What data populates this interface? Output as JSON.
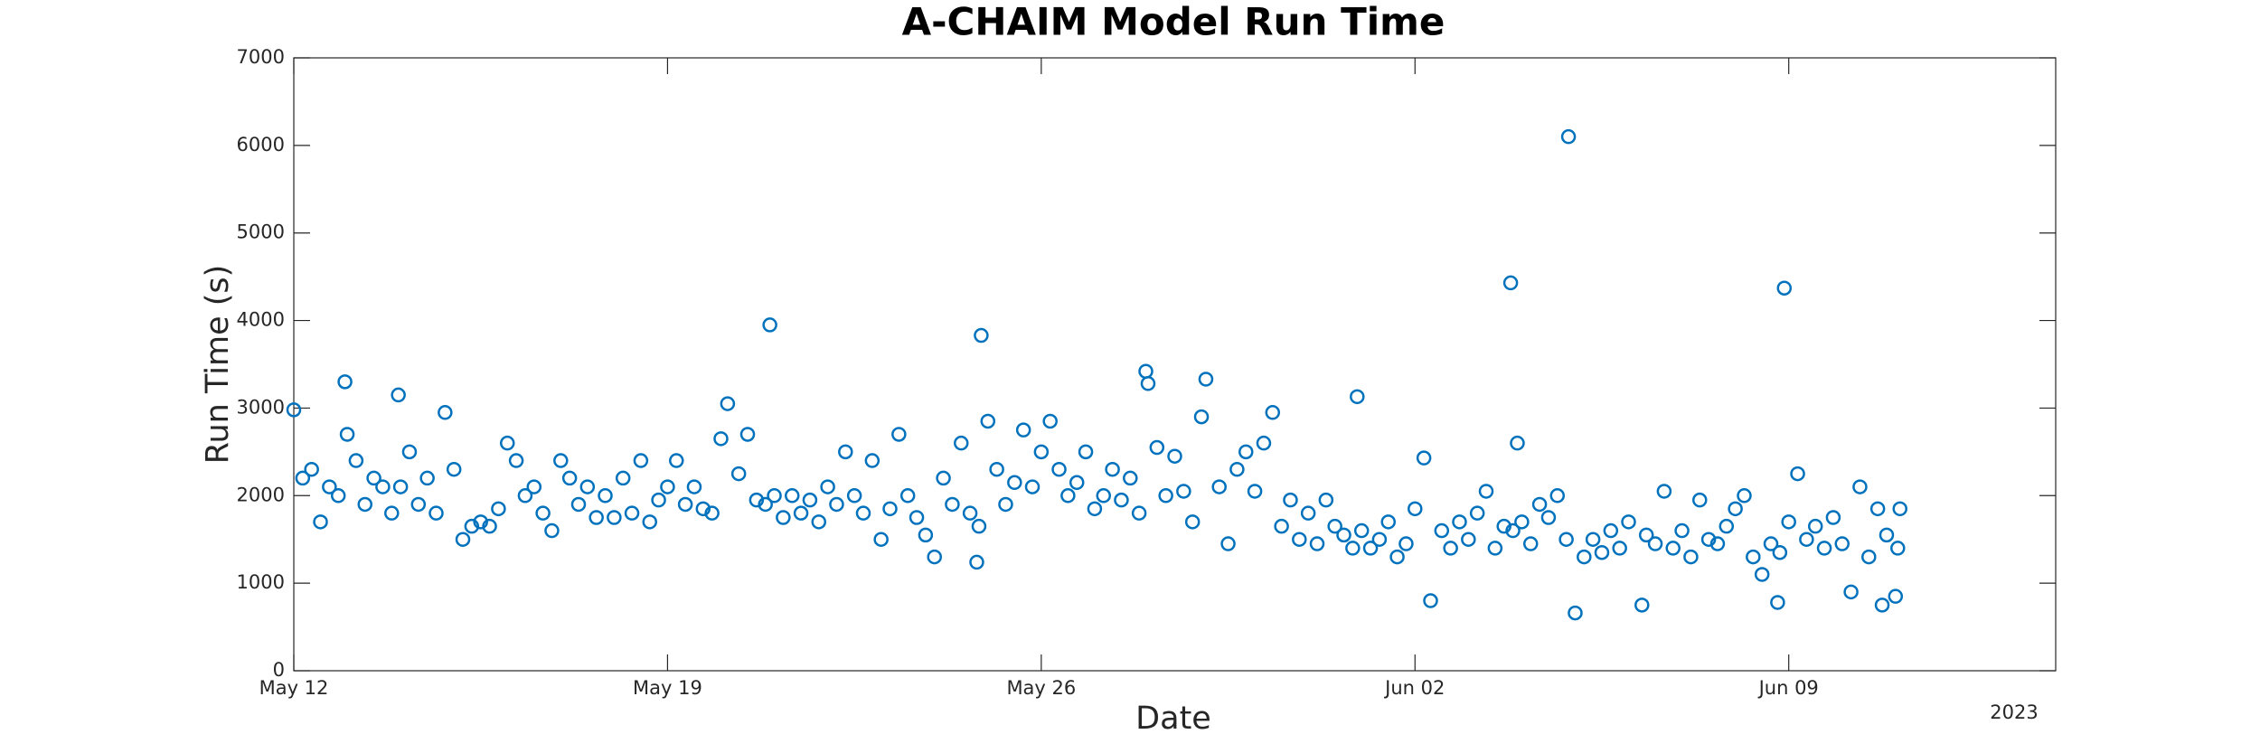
{
  "chart_data": {
    "type": "scatter",
    "title": "A-CHAIM Model Run Time",
    "xlabel": "Date",
    "ylabel": "Run Time (s)",
    "year_label": "2023",
    "color": "#0072BD",
    "xlim": [
      "2023-05-12T00:00",
      "2023-06-14T00:00"
    ],
    "xticks": [
      {
        "value": "2023-05-12T00:00",
        "label": "May 12"
      },
      {
        "value": "2023-05-19T00:00",
        "label": "May 19"
      },
      {
        "value": "2023-05-26T00:00",
        "label": "May 26"
      },
      {
        "value": "2023-06-02T00:00",
        "label": "Jun 02"
      },
      {
        "value": "2023-06-09T00:00",
        "label": "Jun 09"
      }
    ],
    "ylim": [
      0,
      7000
    ],
    "yticks": [
      0,
      1000,
      2000,
      3000,
      4000,
      5000,
      6000,
      7000
    ],
    "x": [
      "2023-05-12T00:00",
      "2023-05-12T04:00",
      "2023-05-12T08:00",
      "2023-05-12T12:00",
      "2023-05-12T16:00",
      "2023-05-12T20:00",
      "2023-05-12T23:00",
      "2023-05-13T00:00",
      "2023-05-13T04:00",
      "2023-05-13T08:00",
      "2023-05-13T12:00",
      "2023-05-13T16:00",
      "2023-05-13T20:00",
      "2023-05-13T23:00",
      "2023-05-14T00:00",
      "2023-05-14T04:00",
      "2023-05-14T08:00",
      "2023-05-14T12:00",
      "2023-05-14T16:00",
      "2023-05-14T20:00",
      "2023-05-15T00:00",
      "2023-05-15T04:00",
      "2023-05-15T08:00",
      "2023-05-15T12:00",
      "2023-05-15T16:00",
      "2023-05-15T20:00",
      "2023-05-16T00:00",
      "2023-05-16T04:00",
      "2023-05-16T08:00",
      "2023-05-16T12:00",
      "2023-05-16T16:00",
      "2023-05-16T20:00",
      "2023-05-17T00:00",
      "2023-05-17T04:00",
      "2023-05-17T08:00",
      "2023-05-17T12:00",
      "2023-05-17T16:00",
      "2023-05-17T20:00",
      "2023-05-18T00:00",
      "2023-05-18T04:00",
      "2023-05-18T08:00",
      "2023-05-18T12:00",
      "2023-05-18T16:00",
      "2023-05-18T20:00",
      "2023-05-19T00:00",
      "2023-05-19T04:00",
      "2023-05-19T08:00",
      "2023-05-19T12:00",
      "2023-05-19T16:00",
      "2023-05-19T20:00",
      "2023-05-20T00:00",
      "2023-05-20T03:00",
      "2023-05-20T08:00",
      "2023-05-20T12:00",
      "2023-05-20T16:00",
      "2023-05-20T20:00",
      "2023-05-20T22:00",
      "2023-05-21T00:00",
      "2023-05-21T04:00",
      "2023-05-21T08:00",
      "2023-05-21T12:00",
      "2023-05-21T16:00",
      "2023-05-21T20:00",
      "2023-05-22T00:00",
      "2023-05-22T04:00",
      "2023-05-22T08:00",
      "2023-05-22T12:00",
      "2023-05-22T16:00",
      "2023-05-22T20:00",
      "2023-05-23T00:00",
      "2023-05-23T04:00",
      "2023-05-23T08:00",
      "2023-05-23T12:00",
      "2023-05-23T16:00",
      "2023-05-23T20:00",
      "2023-05-24T00:00",
      "2023-05-24T04:00",
      "2023-05-24T08:00",
      "2023-05-24T12:00",
      "2023-05-24T16:00",
      "2023-05-24T19:00",
      "2023-05-24T20:00",
      "2023-05-24T21:00",
      "2023-05-25T00:00",
      "2023-05-25T04:00",
      "2023-05-25T08:00",
      "2023-05-25T12:00",
      "2023-05-25T16:00",
      "2023-05-25T20:00",
      "2023-05-26T00:00",
      "2023-05-26T04:00",
      "2023-05-26T08:00",
      "2023-05-26T12:00",
      "2023-05-26T16:00",
      "2023-05-26T20:00",
      "2023-05-27T00:00",
      "2023-05-27T04:00",
      "2023-05-27T08:00",
      "2023-05-27T12:00",
      "2023-05-27T16:00",
      "2023-05-27T20:00",
      "2023-05-27T23:00",
      "2023-05-28T00:00",
      "2023-05-28T04:00",
      "2023-05-28T08:00",
      "2023-05-28T12:00",
      "2023-05-28T16:00",
      "2023-05-28T20:00",
      "2023-05-29T00:00",
      "2023-05-29T02:00",
      "2023-05-29T08:00",
      "2023-05-29T12:00",
      "2023-05-29T16:00",
      "2023-05-29T20:00",
      "2023-05-30T00:00",
      "2023-05-30T04:00",
      "2023-05-30T08:00",
      "2023-05-30T12:00",
      "2023-05-30T16:00",
      "2023-05-30T20:00",
      "2023-05-31T00:00",
      "2023-05-31T04:00",
      "2023-05-31T08:00",
      "2023-05-31T12:00",
      "2023-05-31T16:00",
      "2023-05-31T20:00",
      "2023-05-31T22:00",
      "2023-06-01T00:00",
      "2023-06-01T04:00",
      "2023-06-01T08:00",
      "2023-06-01T12:00",
      "2023-06-01T16:00",
      "2023-06-01T20:00",
      "2023-06-02T00:00",
      "2023-06-02T04:00",
      "2023-06-02T07:00",
      "2023-06-02T12:00",
      "2023-06-02T16:00",
      "2023-06-02T20:00",
      "2023-06-03T00:00",
      "2023-06-03T04:00",
      "2023-06-03T08:00",
      "2023-06-03T12:00",
      "2023-06-03T16:00",
      "2023-06-03T19:00",
      "2023-06-03T20:00",
      "2023-06-03T22:00",
      "2023-06-04T00:00",
      "2023-06-04T04:00",
      "2023-06-04T08:00",
      "2023-06-04T12:00",
      "2023-06-04T16:00",
      "2023-06-04T20:00",
      "2023-06-04T21:00",
      "2023-06-05T00:00",
      "2023-06-05T04:00",
      "2023-06-05T08:00",
      "2023-06-05T12:00",
      "2023-06-05T16:00",
      "2023-06-05T20:00",
      "2023-06-06T00:00",
      "2023-06-06T06:00",
      "2023-06-06T08:00",
      "2023-06-06T12:00",
      "2023-06-06T16:00",
      "2023-06-06T20:00",
      "2023-06-07T00:00",
      "2023-06-07T04:00",
      "2023-06-07T08:00",
      "2023-06-07T12:00",
      "2023-06-07T16:00",
      "2023-06-07T20:00",
      "2023-06-08T00:00",
      "2023-06-08T04:00",
      "2023-06-08T08:00",
      "2023-06-08T12:00",
      "2023-06-08T16:00",
      "2023-06-08T19:00",
      "2023-06-08T20:00",
      "2023-06-08T22:00",
      "2023-06-09T00:00",
      "2023-06-09T04:00",
      "2023-06-09T08:00",
      "2023-06-09T12:00",
      "2023-06-09T16:00",
      "2023-06-09T20:00",
      "2023-06-10T00:00",
      "2023-06-10T04:00",
      "2023-06-10T08:00",
      "2023-06-10T12:00",
      "2023-06-10T16:00",
      "2023-06-10T18:00",
      "2023-06-10T20:00",
      "2023-06-11T00:00",
      "2023-06-11T01:00",
      "2023-06-11T02:00"
    ],
    "values": [
      2980,
      2200,
      2300,
      1700,
      2100,
      2000,
      3300,
      2700,
      2400,
      1900,
      2200,
      2100,
      1800,
      3150,
      2100,
      2500,
      1900,
      2200,
      1800,
      2950,
      2300,
      1500,
      1650,
      1700,
      1650,
      1850,
      2600,
      2400,
      2000,
      2100,
      1800,
      1600,
      2400,
      2200,
      1900,
      2100,
      1750,
      2000,
      1750,
      2200,
      1800,
      2400,
      1700,
      1950,
      2100,
      2400,
      1900,
      2100,
      1850,
      1800,
      2650,
      3050,
      2250,
      2700,
      1950,
      1900,
      3950,
      2000,
      1750,
      2000,
      1800,
      1950,
      1700,
      2100,
      1900,
      2500,
      2000,
      1800,
      2400,
      1500,
      1850,
      2700,
      2000,
      1750,
      1550,
      1300,
      2200,
      1900,
      2600,
      1800,
      1240,
      1650,
      3830,
      2850,
      2300,
      1900,
      2150,
      2750,
      2100,
      2500,
      2850,
      2300,
      2000,
      2150,
      2500,
      1850,
      2000,
      2300,
      1950,
      2200,
      1800,
      3420,
      3280,
      2550,
      2000,
      2450,
      2050,
      1700,
      2900,
      3330,
      2100,
      1450,
      2300,
      2500,
      2050,
      2600,
      2950,
      1650,
      1950,
      1500,
      1800,
      1450,
      1950,
      1650,
      1550,
      1400,
      3130,
      1600,
      1400,
      1500,
      1700,
      1300,
      1450,
      1850,
      2430,
      800,
      1600,
      1400,
      1700,
      1500,
      1800,
      2050,
      1400,
      1650,
      4430,
      1600,
      2600,
      1700,
      1450,
      1900,
      1750,
      2000,
      1500,
      6100,
      660,
      1300,
      1500,
      1350,
      1600,
      1400,
      1700,
      750,
      1550,
      1450,
      2050,
      1400,
      1600,
      1300,
      1950,
      1500,
      1450,
      1650,
      1850,
      2000,
      1300,
      1100,
      1450,
      780,
      1350,
      4370,
      1700,
      2250,
      1500,
      1650,
      1400,
      1750,
      1450,
      900,
      2100,
      1300,
      1850,
      750,
      1550,
      850,
      1400,
      1850
    ]
  }
}
